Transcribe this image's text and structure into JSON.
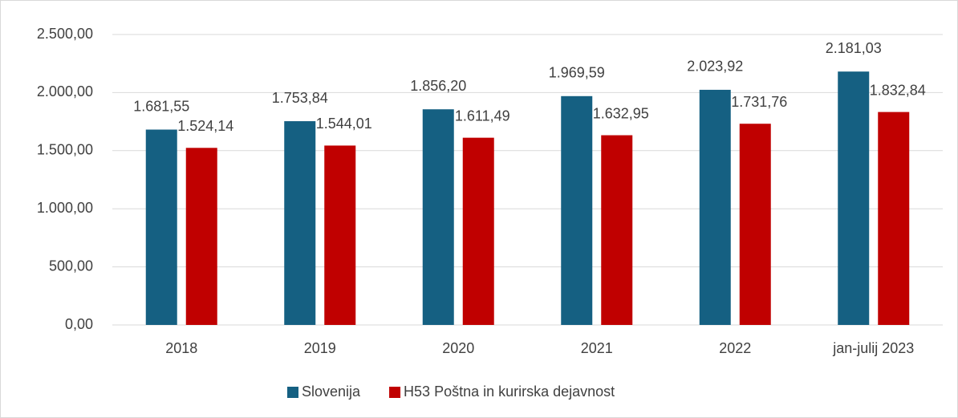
{
  "chart_data": {
    "type": "bar",
    "categories": [
      "2018",
      "2019",
      "2020",
      "2021",
      "2022",
      "jan-julij 2023"
    ],
    "series": [
      {
        "name": "Slovenija",
        "color": "#156082",
        "values": [
          1681.55,
          1753.84,
          1856.2,
          1969.59,
          2023.92,
          2181.03
        ],
        "value_labels": [
          "1.681,55",
          "1.753,84",
          "1.856,20",
          "1.969,59",
          "2.023,92",
          "2.181,03"
        ]
      },
      {
        "name": "H53 Poštna in kurirska dejavnost",
        "color": "#c00000",
        "values": [
          1524.14,
          1544.01,
          1611.49,
          1632.95,
          1731.76,
          1832.84
        ],
        "value_labels": [
          "1.524,14",
          "1.544,01",
          "1.611,49",
          "1.632,95",
          "1.731,76",
          "1.832,84"
        ]
      }
    ],
    "ylim": [
      0,
      2500
    ],
    "yticks": [
      {
        "value": 0,
        "label": "0,00"
      },
      {
        "value": 500,
        "label": "500,00"
      },
      {
        "value": 1000,
        "label": "1.000,00"
      },
      {
        "value": 1500,
        "label": "1.500,00"
      },
      {
        "value": 2000,
        "label": "2.000,00"
      },
      {
        "value": 2500,
        "label": "2.500,00"
      }
    ],
    "grid": true,
    "legend": "bottom"
  }
}
